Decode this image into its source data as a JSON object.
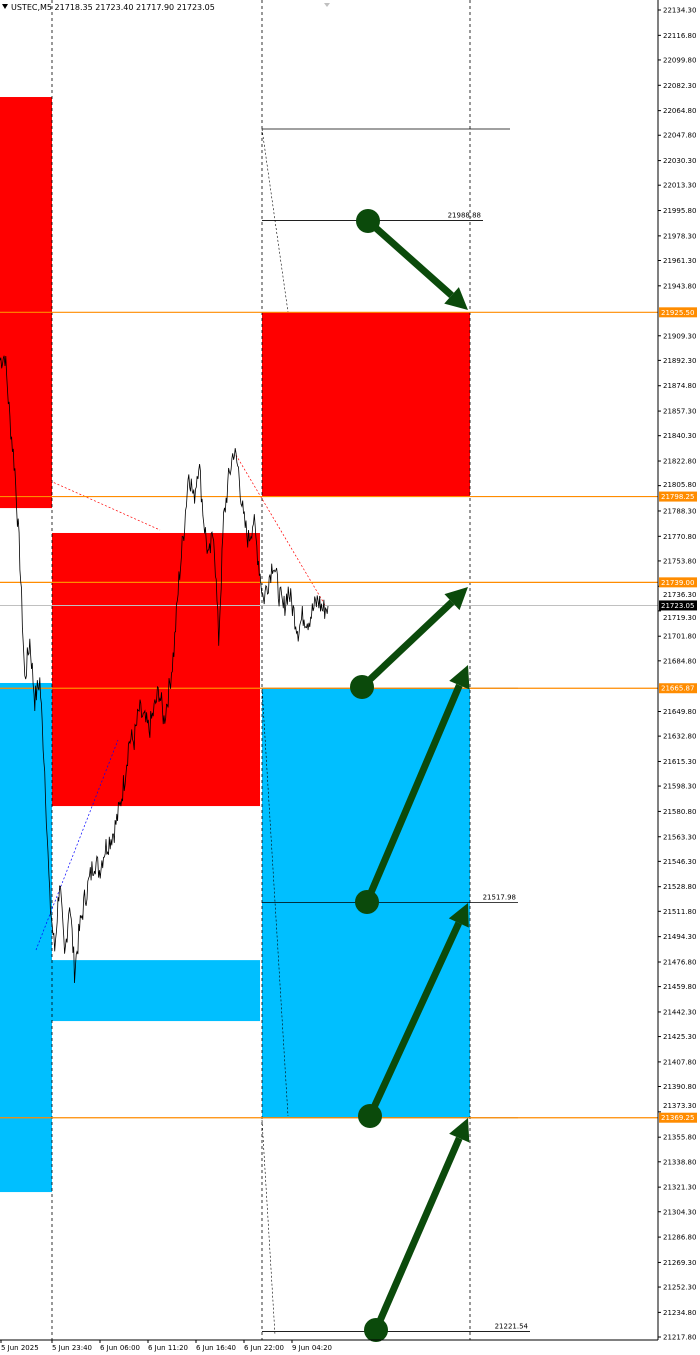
{
  "header": {
    "symbol": "USTEC,M5",
    "ohlc": "21718.35 21723.40 21717.90 21723.05"
  },
  "colors": {
    "supply_zone": "#ff0000",
    "demand_zone": "#00bfff",
    "level_line": "#ff8c00",
    "arrow": "#0b4a0b",
    "price": "#000000",
    "current_price_bg": "#000000"
  },
  "chart_data": {
    "type": "line",
    "title": "USTEC,M5",
    "y_range": [
      21217.8,
      22134.3
    ],
    "y_ticks": [
      "22134.30",
      "22116.80",
      "22099.80",
      "22082.30",
      "22064.80",
      "22047.80",
      "22030.30",
      "22013.30",
      "21995.80",
      "21978.30",
      "21961.30",
      "21943.80",
      "21909.30",
      "21892.30",
      "21874.80",
      "21857.30",
      "21840.30",
      "21822.80",
      "21805.80",
      "21788.30",
      "21770.80",
      "21753.80",
      "21736.30",
      "21719.30",
      "21701.80",
      "21684.80",
      "21649.80",
      "21632.80",
      "21615.30",
      "21598.30",
      "21580.80",
      "21563.30",
      "21546.30",
      "21528.80",
      "21511.80",
      "21494.30",
      "21476.80",
      "21459.80",
      "21442.30",
      "21425.30",
      "21407.80",
      "21390.80",
      "21373.30",
      "21355.80",
      "21338.80",
      "21321.30",
      "21304.30",
      "21286.80",
      "21269.30",
      "21252.30",
      "21234.80",
      "21217.80"
    ],
    "x_ticks": [
      "5 Jun 2025",
      "5 Jun 23:40",
      "6 Jun 06:00",
      "6 Jun 11:20",
      "6 Jun 16:40",
      "6 Jun 22:00",
      "9 Jun 04:20"
    ],
    "price_series": [
      21892.6,
      21896.0,
      21851.1,
      21816.6,
      21754.4,
      21671.5,
      21699.2,
      21657.7,
      21671.5,
      21609.4,
      21519.6,
      21485.0,
      21533.4,
      21478.1,
      21519.6,
      21471.2,
      21498.9,
      21519.6,
      21533.4,
      21547.2,
      21540.3,
      21554.1,
      21561.0,
      21567.9,
      21581.7,
      21602.5,
      21630.1,
      21630.1,
      21650.8,
      21643.9,
      21637.0,
      21650.8,
      21664.6,
      21643.9,
      21664.6,
      21692.3,
      21740.6,
      21775.1,
      21816.6,
      21795.9,
      21823.5,
      21782.2,
      21754.4,
      21775.1,
      21699.2,
      21782.2,
      21809.7,
      21830.4,
      21816.6,
      21782.2,
      21768.2,
      21782.2,
      21754.4,
      21726.8,
      21740.6,
      21754.4,
      21733.7,
      21719.9,
      21733.7,
      21719.9,
      21706.1,
      21716.4,
      21713.0,
      21719.9,
      21726.8,
      21719.9,
      21722.7
    ],
    "zones": [
      {
        "type": "supply",
        "top": 22074.2,
        "bottom": 21790.3
      },
      {
        "type": "supply",
        "top": 21773.1,
        "bottom": 21584.5
      },
      {
        "type": "supply",
        "top": 21925.5,
        "bottom": 21798.25
      },
      {
        "type": "demand",
        "top": 21669.5,
        "bottom": 21317.9
      },
      {
        "type": "demand",
        "top": 21478.1,
        "bottom": 21436.0
      },
      {
        "type": "demand",
        "top": 21665.87,
        "bottom": 21369.25
      }
    ],
    "orange_levels": [
      "21925.50",
      "21798.25",
      "21739.00",
      "21665.87",
      "21369.25"
    ],
    "current_price": "21723.05",
    "labeled_levels": [
      "21988.88",
      "21517.98",
      "21221.54"
    ],
    "unlabeled_levels": [
      22052.1
    ]
  }
}
